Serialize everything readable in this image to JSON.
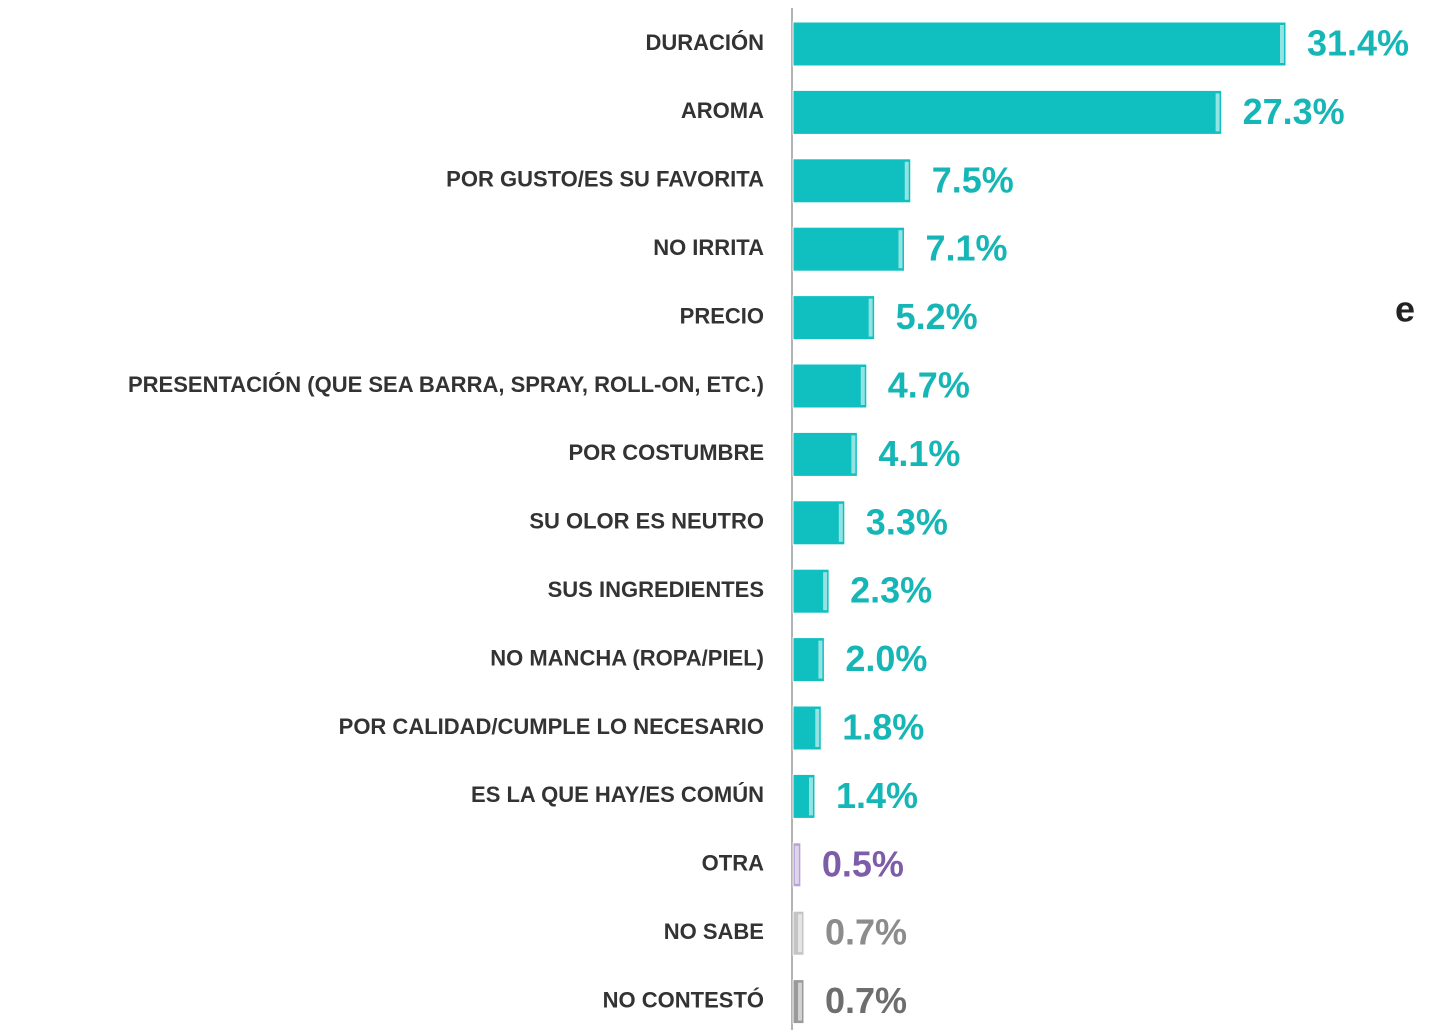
{
  "chart_data": {
    "type": "hbar",
    "categories": [
      "DURACIÓN",
      "AROMA",
      "POR GUSTO/ES SU FAVORITA",
      "NO IRRITA",
      "PRECIO",
      "PRESENTACIÓN (QUE SEA BARRA, SPRAY, ROLL-ON, ETC.)",
      "POR COSTUMBRE",
      "SU OLOR ES NEUTRO",
      "SUS INGREDIENTES",
      "NO MANCHA (ROPA/PIEL)",
      "POR CALIDAD/CUMPLE LO NECESARIO",
      "ES LA QUE HAY/ES COMÚN",
      "OTRA",
      "NO SABE",
      "NO CONTESTÓ"
    ],
    "values": [
      31.4,
      27.3,
      7.5,
      7.1,
      5.2,
      4.7,
      4.1,
      3.3,
      2.3,
      2.0,
      1.8,
      1.4,
      0.5,
      0.7,
      0.7
    ],
    "value_labels": [
      "31.4%",
      "27.3%",
      "7.5%",
      "7.1%",
      "5.2%",
      "4.7%",
      "4.1%",
      "3.3%",
      "2.3%",
      "2.0%",
      "1.8%",
      "1.4%",
      "0.5%",
      "0.7%",
      "0.7%"
    ],
    "colors": [
      "#10c0c0",
      "#10c0c0",
      "#10c0c0",
      "#10c0c0",
      "#10c0c0",
      "#10c0c0",
      "#10c0c0",
      "#10c0c0",
      "#10c0c0",
      "#10c0c0",
      "#10c0c0",
      "#10c0c0",
      "#b7a3d6",
      "#c4c4c4",
      "#9a9a9a"
    ],
    "label_colors": [
      "#16b6b6",
      "#16b6b6",
      "#16b6b6",
      "#16b6b6",
      "#16b6b6",
      "#16b6b6",
      "#16b6b6",
      "#16b6b6",
      "#16b6b6",
      "#16b6b6",
      "#16b6b6",
      "#16b6b6",
      "#7d5ca8",
      "#8c8c8c",
      "#6e6e6e"
    ],
    "xlim": [
      0,
      32
    ],
    "annotation": "e"
  }
}
